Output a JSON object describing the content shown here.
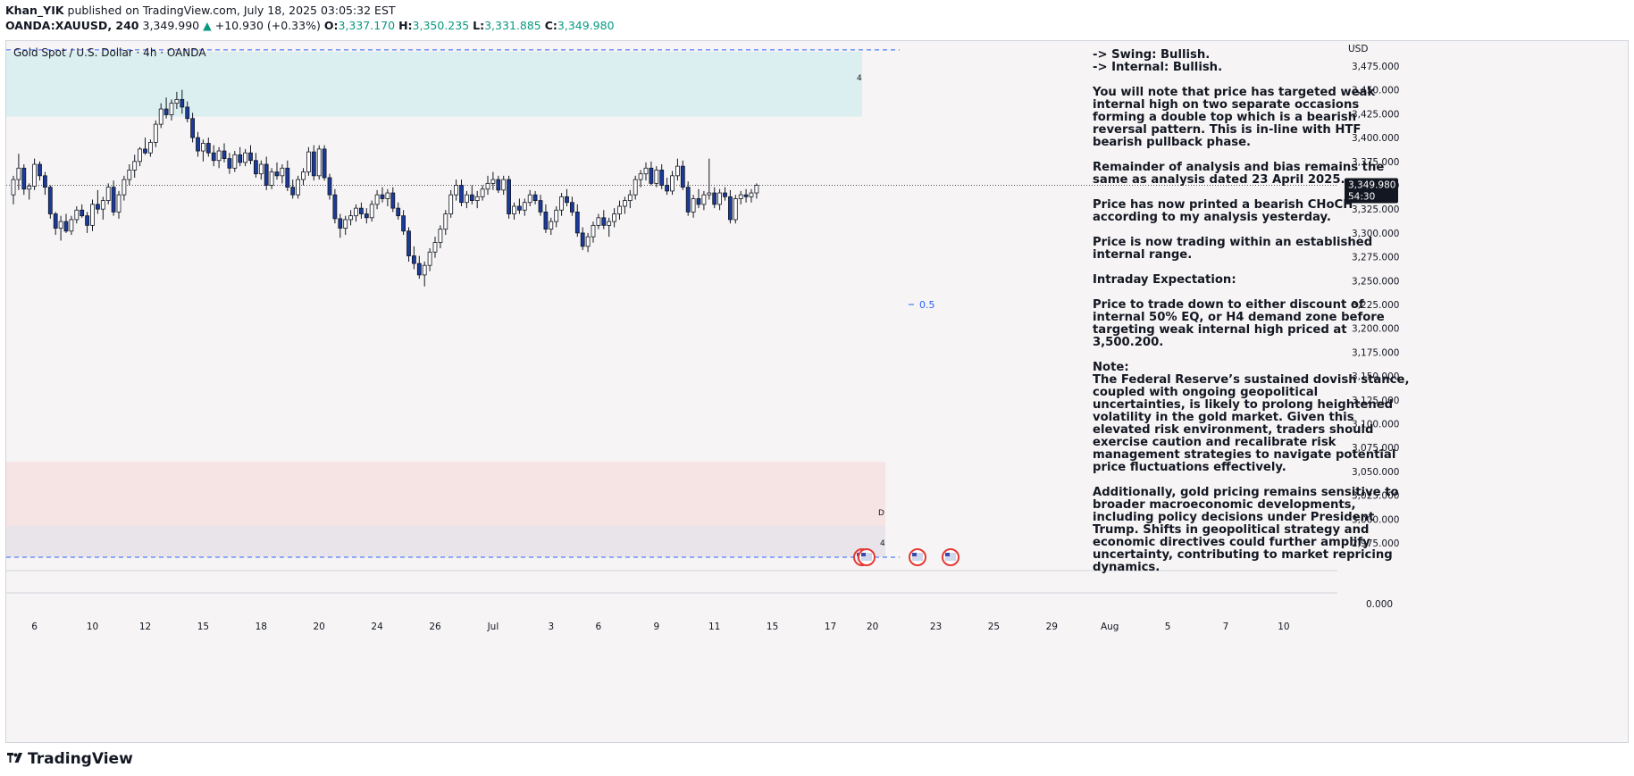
{
  "header": {
    "publisher": "Khan_YIK",
    "published_text": "published on TradingView.com, July 18, 2025 03:05:32 EST",
    "symbol": "OANDA:XAUUSD, 240",
    "last": "3,349.990",
    "change_arrow": "▲",
    "change": "+10.930 (+0.33%)",
    "o_label": "O:",
    "o_value": "3,337.170",
    "h_label": "H:",
    "h_value": "3,350.235",
    "l_label": "L:",
    "l_value": "3,331.885",
    "c_label": "C:",
    "c_value": "3,349.980"
  },
  "chart_title": "Gold Spot / U.S. Dollar · 4h · OANDA",
  "analysis": {
    "swing": "-> Swing:  Bullish.",
    "internal": "-> Internal:  Bullish.",
    "para1": "You will note that price has targeted weak internal high on two separate occasions forming a double top which is a bearish reversal pattern. This is in-line with HTF bearish pullback phase.",
    "para2": "Remainder of analysis and bias remains the same as analysis dated 23 April 2025.",
    "para3": "Price has now printed a bearish CHoCH according to my analysis yesterday.",
    "para4": "Price is now trading within an established internal range.",
    "para5_title": "Intraday Expectation:",
    "para5": "Price to trade down to either discount of internal 50% EQ, or H4 demand zone before targeting weak internal high priced at 3,500.200.",
    "note_title": "Note:",
    "note": "The Federal Reserve’s sustained dovish stance, coupled with ongoing geopolitical uncertainties, is likely to prolong heightened volatility in the gold market. Given this elevated risk environment, traders should exercise caution and recalibrate risk management strategies to navigate potential price fluctuations effectively.",
    "para7": "Additionally, gold pricing remains sensitive to broader macroeconomic developments, including policy decisions under President Trump. Shifts in geopolitical strategy and economic directives could further amplify uncertainty, contributing to market repricing dynamics."
  },
  "footer": {
    "brand": "TradingView"
  },
  "colors": {
    "up": "#089981",
    "down_fill": "#1a3a9c",
    "zone_supply": "#dbeef0",
    "zone_demand": "#f6e3e3",
    "zone_demand2": "#e9e4e9",
    "dashed": "#2962ff",
    "price_tag": "#131722"
  },
  "chart_data": {
    "type": "candlestick",
    "title": "Gold Spot / U.S. Dollar · 4h · OANDA",
    "currency": "USD",
    "y_ticks": [
      "3,475.000",
      "3,450.000",
      "3,425.000",
      "3,400.000",
      "3,375.000",
      "3,350.000",
      "3,325.000",
      "3,300.000",
      "3,275.000",
      "3,250.000",
      "3,225.000",
      "3,200.000",
      "3,175.000",
      "3,150.000",
      "3,125.000",
      "3,100.000",
      "3,075.000",
      "3,050.000",
      "3,025.000",
      "3,000.000",
      "2,975.000"
    ],
    "y_tick_values": [
      3475,
      3450,
      3425,
      3400,
      3375,
      3350,
      3325,
      3300,
      3275,
      3250,
      3225,
      3200,
      3175,
      3150,
      3125,
      3100,
      3075,
      3050,
      3025,
      3000,
      2975
    ],
    "zero_label": "0.000",
    "x_ticks": [
      "6",
      "10",
      "12",
      "15",
      "18",
      "20",
      "24",
      "26",
      "Jul",
      "3",
      "6",
      "9",
      "11",
      "15",
      "17",
      "20",
      "23",
      "25",
      "29",
      "Aug",
      "5",
      "7",
      "10"
    ],
    "x_tick_bar_index": [
      4,
      15,
      25,
      36,
      47,
      58,
      69,
      80,
      91,
      102,
      111,
      122,
      133,
      144,
      155,
      163,
      175,
      186,
      197,
      208,
      219,
      230,
      241
    ],
    "current_price_label": "3,349.980",
    "countdown": "54:30",
    "current_price": 3349.98,
    "fib_label": "0.5",
    "fib_level": 3225,
    "zone_labels": [
      "4",
      "D",
      "4"
    ],
    "supply_zone": [
      3422,
      3490
    ],
    "demand_zone": [
      2993,
      3060
    ],
    "demand_zone_2": [
      2960,
      2993
    ],
    "dashed_levels": [
      3492,
      2960
    ],
    "candles": [
      [
        3340,
        3360,
        3330,
        3356
      ],
      [
        3356,
        3383,
        3345,
        3368
      ],
      [
        3368,
        3372,
        3340,
        3346
      ],
      [
        3346,
        3352,
        3335,
        3349
      ],
      [
        3349,
        3378,
        3345,
        3372
      ],
      [
        3372,
        3375,
        3355,
        3360
      ],
      [
        3360,
        3364,
        3340,
        3348
      ],
      [
        3348,
        3350,
        3315,
        3320
      ],
      [
        3320,
        3322,
        3298,
        3305
      ],
      [
        3305,
        3318,
        3292,
        3312
      ],
      [
        3312,
        3320,
        3300,
        3302
      ],
      [
        3302,
        3318,
        3298,
        3314
      ],
      [
        3314,
        3328,
        3310,
        3324
      ],
      [
        3324,
        3330,
        3316,
        3318
      ],
      [
        3318,
        3322,
        3300,
        3308
      ],
      [
        3308,
        3335,
        3302,
        3330
      ],
      [
        3330,
        3345,
        3320,
        3325
      ],
      [
        3325,
        3338,
        3314,
        3334
      ],
      [
        3334,
        3352,
        3330,
        3348
      ],
      [
        3348,
        3355,
        3318,
        3322
      ],
      [
        3322,
        3344,
        3315,
        3340
      ],
      [
        3340,
        3360,
        3334,
        3356
      ],
      [
        3356,
        3372,
        3350,
        3366
      ],
      [
        3366,
        3382,
        3358,
        3375
      ],
      [
        3375,
        3390,
        3370,
        3388
      ],
      [
        3388,
        3400,
        3382,
        3384
      ],
      [
        3384,
        3398,
        3380,
        3395
      ],
      [
        3395,
        3418,
        3390,
        3414
      ],
      [
        3414,
        3436,
        3410,
        3430
      ],
      [
        3430,
        3442,
        3420,
        3424
      ],
      [
        3424,
        3440,
        3418,
        3436
      ],
      [
        3436,
        3448,
        3430,
        3440
      ],
      [
        3440,
        3450,
        3425,
        3432
      ],
      [
        3432,
        3438,
        3416,
        3420
      ],
      [
        3420,
        3426,
        3395,
        3400
      ],
      [
        3400,
        3406,
        3380,
        3386
      ],
      [
        3386,
        3398,
        3375,
        3394
      ],
      [
        3394,
        3400,
        3380,
        3384
      ],
      [
        3384,
        3392,
        3370,
        3376
      ],
      [
        3376,
        3390,
        3368,
        3386
      ],
      [
        3386,
        3394,
        3374,
        3378
      ],
      [
        3378,
        3384,
        3362,
        3368
      ],
      [
        3368,
        3386,
        3364,
        3382
      ],
      [
        3382,
        3390,
        3370,
        3374
      ],
      [
        3374,
        3388,
        3370,
        3384
      ],
      [
        3384,
        3392,
        3372,
        3376
      ],
      [
        3376,
        3384,
        3358,
        3362
      ],
      [
        3362,
        3376,
        3356,
        3372
      ],
      [
        3372,
        3380,
        3345,
        3350
      ],
      [
        3350,
        3368,
        3346,
        3364
      ],
      [
        3364,
        3374,
        3356,
        3360
      ],
      [
        3360,
        3372,
        3352,
        3368
      ],
      [
        3368,
        3376,
        3344,
        3348
      ],
      [
        3348,
        3356,
        3336,
        3340
      ],
      [
        3340,
        3360,
        3336,
        3356
      ],
      [
        3356,
        3368,
        3350,
        3364
      ],
      [
        3364,
        3390,
        3360,
        3385
      ],
      [
        3385,
        3392,
        3355,
        3360
      ],
      [
        3360,
        3392,
        3356,
        3388
      ],
      [
        3388,
        3392,
        3355,
        3358
      ],
      [
        3358,
        3362,
        3335,
        3340
      ],
      [
        3340,
        3346,
        3310,
        3315
      ],
      [
        3315,
        3320,
        3295,
        3305
      ],
      [
        3305,
        3318,
        3298,
        3314
      ],
      [
        3314,
        3324,
        3308,
        3318
      ],
      [
        3318,
        3330,
        3312,
        3326
      ],
      [
        3326,
        3332,
        3315,
        3320
      ],
      [
        3320,
        3326,
        3310,
        3316
      ],
      [
        3316,
        3334,
        3312,
        3330
      ],
      [
        3330,
        3345,
        3325,
        3340
      ],
      [
        3340,
        3348,
        3332,
        3336
      ],
      [
        3336,
        3346,
        3328,
        3342
      ],
      [
        3342,
        3348,
        3322,
        3326
      ],
      [
        3326,
        3332,
        3314,
        3318
      ],
      [
        3318,
        3324,
        3298,
        3302
      ],
      [
        3302,
        3306,
        3270,
        3276
      ],
      [
        3276,
        3286,
        3262,
        3268
      ],
      [
        3268,
        3276,
        3252,
        3256
      ],
      [
        3256,
        3270,
        3244,
        3266
      ],
      [
        3266,
        3284,
        3260,
        3280
      ],
      [
        3280,
        3296,
        3274,
        3290
      ],
      [
        3290,
        3308,
        3284,
        3304
      ],
      [
        3304,
        3324,
        3298,
        3320
      ],
      [
        3320,
        3345,
        3316,
        3340
      ],
      [
        3340,
        3356,
        3334,
        3350
      ],
      [
        3350,
        3356,
        3328,
        3332
      ],
      [
        3332,
        3344,
        3326,
        3340
      ],
      [
        3340,
        3350,
        3330,
        3334
      ],
      [
        3334,
        3344,
        3326,
        3338
      ],
      [
        3338,
        3350,
        3334,
        3346
      ],
      [
        3346,
        3360,
        3340,
        3352
      ],
      [
        3352,
        3364,
        3345,
        3356
      ],
      [
        3356,
        3360,
        3342,
        3345
      ],
      [
        3345,
        3360,
        3340,
        3356
      ],
      [
        3356,
        3360,
        3315,
        3320
      ],
      [
        3320,
        3332,
        3314,
        3328
      ],
      [
        3328,
        3336,
        3320,
        3324
      ],
      [
        3324,
        3336,
        3318,
        3332
      ],
      [
        3332,
        3345,
        3328,
        3340
      ],
      [
        3340,
        3344,
        3330,
        3334
      ],
      [
        3334,
        3340,
        3318,
        3322
      ],
      [
        3322,
        3330,
        3300,
        3304
      ],
      [
        3304,
        3316,
        3298,
        3312
      ],
      [
        3312,
        3328,
        3306,
        3324
      ],
      [
        3324,
        3342,
        3318,
        3338
      ],
      [
        3338,
        3346,
        3328,
        3332
      ],
      [
        3332,
        3338,
        3318,
        3322
      ],
      [
        3322,
        3330,
        3296,
        3300
      ],
      [
        3300,
        3306,
        3282,
        3286
      ],
      [
        3286,
        3300,
        3280,
        3296
      ],
      [
        3296,
        3312,
        3290,
        3308
      ],
      [
        3308,
        3320,
        3304,
        3316
      ],
      [
        3316,
        3324,
        3304,
        3308
      ],
      [
        3308,
        3316,
        3296,
        3312
      ],
      [
        3312,
        3326,
        3306,
        3320
      ],
      [
        3320,
        3334,
        3314,
        3328
      ],
      [
        3328,
        3338,
        3320,
        3334
      ],
      [
        3334,
        3345,
        3326,
        3340
      ],
      [
        3340,
        3360,
        3335,
        3356
      ],
      [
        3356,
        3366,
        3348,
        3362
      ],
      [
        3362,
        3374,
        3355,
        3368
      ],
      [
        3368,
        3375,
        3350,
        3352
      ],
      [
        3352,
        3370,
        3348,
        3366
      ],
      [
        3366,
        3372,
        3346,
        3350
      ],
      [
        3350,
        3358,
        3340,
        3344
      ],
      [
        3344,
        3365,
        3340,
        3360
      ],
      [
        3360,
        3378,
        3355,
        3370
      ],
      [
        3370,
        3376,
        3345,
        3348
      ],
      [
        3348,
        3354,
        3318,
        3322
      ],
      [
        3322,
        3340,
        3316,
        3336
      ],
      [
        3336,
        3346,
        3326,
        3330
      ],
      [
        3330,
        3344,
        3324,
        3340
      ],
      [
        3340,
        3378,
        3335,
        3342
      ],
      [
        3342,
        3348,
        3326,
        3330
      ],
      [
        3330,
        3346,
        3324,
        3342
      ],
      [
        3342,
        3348,
        3334,
        3338
      ],
      [
        3338,
        3345,
        3310,
        3314
      ],
      [
        3314,
        3340,
        3310,
        3336
      ],
      [
        3336,
        3344,
        3330,
        3340
      ],
      [
        3340,
        3346,
        3332,
        3338
      ],
      [
        3338,
        3346,
        3332,
        3342
      ],
      [
        3342,
        3352,
        3336,
        3350
      ]
    ]
  }
}
